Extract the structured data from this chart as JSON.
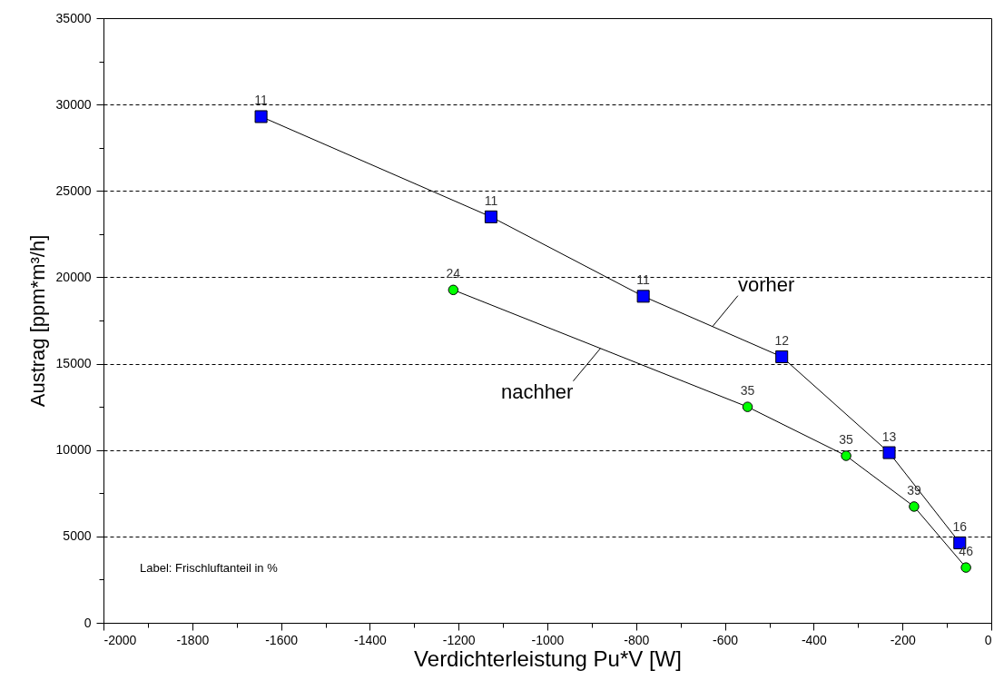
{
  "chart_data": {
    "type": "line",
    "xlabel": "Verdichterleistung Pu*V [W]",
    "ylabel": "Austrag [ppm*m³/h]",
    "annotations": [
      "Label: Frischluftanteil in %",
      {
        "text": "11",
        "x": -1645,
        "y": 29300
      },
      {
        "text": "11",
        "x": -1127,
        "y": 23500
      },
      {
        "text": "11",
        "x": -784,
        "y": 18900
      },
      {
        "text": "12",
        "x": -472,
        "y": 15400
      },
      {
        "text": "13",
        "x": -230,
        "y": 9850
      },
      {
        "text": "16",
        "x": -71,
        "y": 4630
      },
      {
        "text": "24",
        "x": -1212,
        "y": 19270
      },
      {
        "text": "35",
        "x": -549,
        "y": 12500
      },
      {
        "text": "35",
        "x": -327,
        "y": 9670
      },
      {
        "text": "39",
        "x": -174,
        "y": 6730
      },
      {
        "text": "46",
        "x": -57,
        "y": 3200
      }
    ],
    "xlim": [
      -2000,
      0
    ],
    "xticks": [
      -2000,
      {
        "value": -1900,
        "label": null
      },
      -1800,
      {
        "value": -1700,
        "label": null
      },
      -1600,
      {
        "value": -1500,
        "label": null
      },
      -1400,
      {
        "value": -1300,
        "label": null
      },
      -1200,
      {
        "value": -1100,
        "label": null
      },
      -1000,
      {
        "value": -900,
        "label": null
      },
      -800,
      {
        "value": -700,
        "label": null
      },
      -600,
      {
        "value": -500,
        "label": null
      },
      -400,
      {
        "value": -300,
        "label": null
      },
      -200,
      {
        "value": -100,
        "label": null
      },
      0
    ],
    "ylim": [
      0,
      35000
    ],
    "yticks": [
      0,
      {
        "value": 2500,
        "label": null
      },
      5000,
      {
        "value": 7500,
        "label": null
      },
      10000,
      {
        "value": 12500,
        "label": null
      },
      15000,
      {
        "value": 17500,
        "label": null
      },
      20000,
      {
        "value": 22500,
        "label": null
      },
      25000,
      {
        "value": 27500,
        "label": null
      },
      30000,
      {
        "value": 32500,
        "label": null
      },
      35000
    ],
    "grid": "y",
    "line_style": "solid",
    "series": [
      {
        "name": "vorher",
        "color": "#0000ff",
        "marker": "square",
        "x": [
          -1645,
          -1127,
          -784,
          -472,
          -230,
          -71
        ],
        "values": [
          29300,
          23500,
          18900,
          15400,
          9850,
          4630
        ]
      },
      {
        "name": "nachher",
        "color": "#00ff00",
        "marker": "circle",
        "x": [
          -1212,
          -549,
          -327,
          -174,
          -57
        ],
        "values": [
          19270,
          12500,
          9670,
          6730,
          3200
        ]
      }
    ]
  }
}
